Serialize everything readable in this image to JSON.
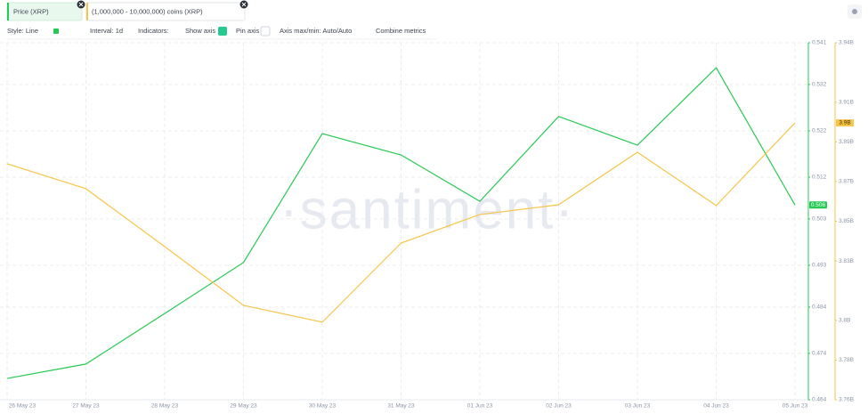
{
  "toolbar": [
    "Style: Line",
    "Interval: 1d",
    "Indicators:",
    "Show axis",
    "Pin axis",
    "Axis max/min: Auto/Auto",
    "Combine metrics"
  ],
  "watermark": "·santiment·",
  "chart_data": {
    "type": "line",
    "x": [
      "26 May 23",
      "27 May 23",
      "28 May 23",
      "29 May 23",
      "30 May 23",
      "31 May 23",
      "01 Jun 23",
      "02 Jun 23",
      "03 Jun 23",
      "04 Jun 23",
      "05 Jun 23"
    ],
    "series": [
      {
        "name": "Price (XRP)",
        "color": "#26c953",
        "values": [
          0.4686,
          0.4717,
          0.4826,
          0.4936,
          0.5214,
          0.5168,
          0.5068,
          0.5251,
          0.5189,
          0.5356,
          0.506
        ]
      },
      {
        "name": "(1,000,000 - 10,000,000) coins (XRP)",
        "color": "#f7c548",
        "axis": "y2",
        "values": [
          3879000000,
          3866400000,
          3837200000,
          3807600000,
          3799100000,
          3839000000,
          3853400000,
          3858300000,
          3884800000,
          3857900000,
          3899600000
        ],
        "value_labels": [
          null,
          null,
          null,
          null,
          null,
          null,
          null,
          null,
          null,
          null,
          "3.9B"
        ]
      }
    ],
    "ylim": [
      0.464,
      0.541
    ],
    "yticks": [
      0.541,
      0.532,
      0.522,
      0.512,
      0.503,
      0.493,
      0.484,
      0.474,
      0.464
    ],
    "y2lim": [
      3760000000,
      3940000000
    ],
    "y2ticks": [
      {
        "value": 3940000000,
        "label": "3.94B"
      },
      {
        "value": 3910000000,
        "label": "3.91B"
      },
      {
        "value": 3890000000,
        "label": "3.89B"
      },
      {
        "value": 3870000000,
        "label": "3.87B"
      },
      {
        "value": 3850000000,
        "label": "3.85B"
      },
      {
        "value": 3830000000,
        "label": "3.83B"
      },
      {
        "value": 3800000000,
        "label": "3.8B"
      },
      {
        "value": 3780000000,
        "label": "3.78B"
      },
      {
        "value": 3760000000,
        "label": "3.76B"
      }
    ],
    "grid": true
  }
}
